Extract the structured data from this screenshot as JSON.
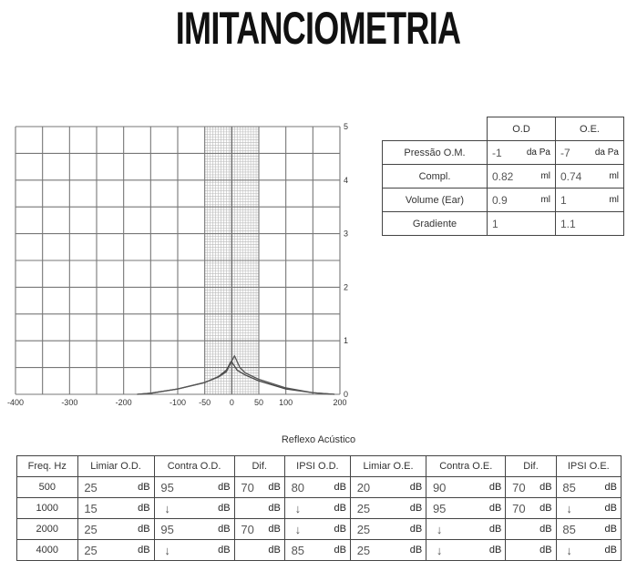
{
  "title": "IMITANCIOMETRIA",
  "chart_data": {
    "type": "line",
    "x_ticks": [
      "-400",
      "-300",
      "-200",
      "-100",
      "-50",
      "0",
      "50",
      "100",
      "200"
    ],
    "y_ticks": [
      "0",
      "1",
      "2",
      "3",
      "4",
      "5"
    ],
    "xlim": [
      -400,
      200
    ],
    "ylim": [
      0,
      5
    ],
    "grid": true,
    "fine_grid_range": [
      -50,
      50
    ],
    "series": [
      {
        "x": [
          -175,
          -150,
          -100,
          -50,
          -25,
          -10,
          -1,
          10,
          25,
          50,
          100,
          150,
          190
        ],
        "y": [
          0,
          0.02,
          0.1,
          0.22,
          0.33,
          0.45,
          0.62,
          0.45,
          0.36,
          0.25,
          0.1,
          0.03,
          0
        ],
        "color": "#444444"
      },
      {
        "x": [
          -175,
          -150,
          -100,
          -50,
          -25,
          -10,
          5,
          15,
          25,
          50,
          100,
          150,
          190
        ],
        "y": [
          0,
          0.02,
          0.1,
          0.22,
          0.32,
          0.42,
          0.72,
          0.5,
          0.4,
          0.28,
          0.12,
          0.03,
          0
        ],
        "color": "#555555"
      }
    ]
  },
  "imitancia": {
    "headers": [
      "O.D",
      "O.E."
    ],
    "rows": [
      {
        "label": "Pressão O.M.",
        "od": "-1",
        "od_unit": "da Pa",
        "oe": "-7",
        "oe_unit": "da Pa"
      },
      {
        "label": "Compl.",
        "od": "0.82",
        "od_unit": "ml",
        "oe": "0.74",
        "oe_unit": "ml"
      },
      {
        "label": "Volume (Ear)",
        "od": "0.9",
        "od_unit": "ml",
        "oe": "1",
        "oe_unit": "ml"
      },
      {
        "label": "Gradiente",
        "od": "1",
        "od_unit": "",
        "oe": "1.1",
        "oe_unit": ""
      }
    ]
  },
  "reflexo": {
    "title": "Reflexo Acústico",
    "headers": [
      "Freq. Hz",
      "Limiar O.D.",
      "Contra O.D.",
      "Dif.",
      "IPSI O.D.",
      "Limiar O.E.",
      "Contra O.E.",
      "Dif.",
      "IPSI O.E."
    ],
    "unit": "dB",
    "rows": [
      {
        "freq": "500",
        "values": [
          "25",
          "95",
          "70",
          "80",
          "20",
          "90",
          "70",
          "85"
        ]
      },
      {
        "freq": "1000",
        "values": [
          "15",
          "↓",
          "",
          "↓",
          "25",
          "95",
          "70",
          "↓"
        ]
      },
      {
        "freq": "2000",
        "values": [
          "25",
          "95",
          "70",
          "↓",
          "25",
          "↓",
          "",
          "85"
        ]
      },
      {
        "freq": "4000",
        "values": [
          "25",
          "↓",
          "",
          "85",
          "25",
          "↓",
          "",
          "↓"
        ]
      }
    ]
  }
}
